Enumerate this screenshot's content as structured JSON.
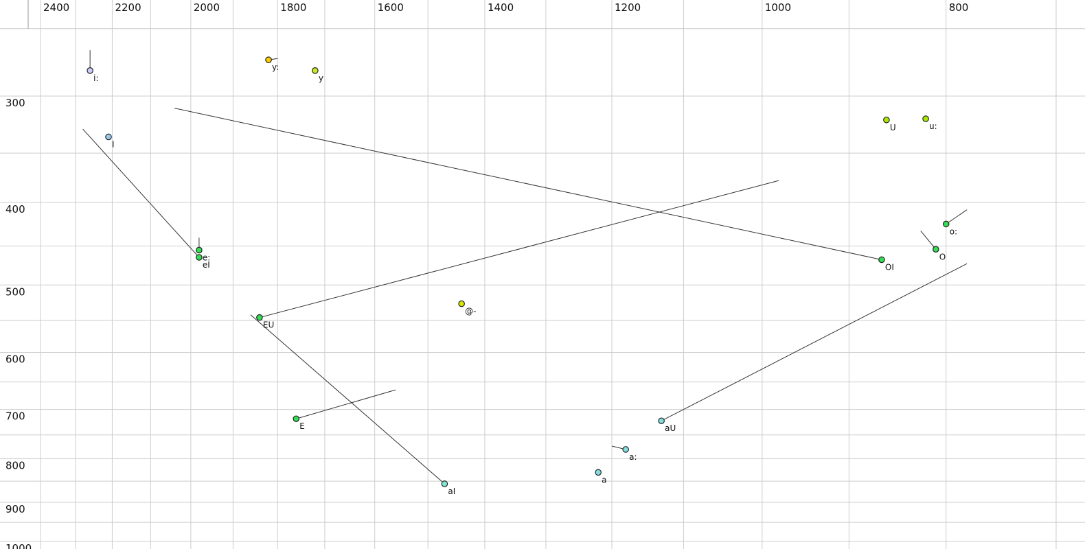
{
  "chart_data": {
    "type": "scatter",
    "title": "",
    "description": "Vowel formant chart (F2 horizontal reversed log scale, F1 vertical log scale) with X-SAMPA vowel labels and diphthong trajectory lines",
    "grid": true,
    "legend": "none",
    "x_axis": {
      "unit": "Hz",
      "ticks": [
        2400,
        2200,
        2000,
        1800,
        1600,
        1400,
        1200,
        1000,
        800
      ],
      "minor_step": 100,
      "grid_min": 700,
      "grid_max": 2400,
      "scale": "log",
      "direction": "reversed"
    },
    "y_axis": {
      "unit": "Hz",
      "ticks": [
        300,
        400,
        500,
        600,
        700,
        800,
        900,
        1000
      ],
      "minor_step": 50,
      "grid_min": 250,
      "grid_max": 1000,
      "scale": "log",
      "direction": "down"
    },
    "points": [
      {
        "label": "i:",
        "f2": 2260,
        "f1": 280,
        "f2_end": 2260,
        "f1_end": 265,
        "fill": "#ccccff"
      },
      {
        "label": "y:",
        "f2": 1820,
        "f1": 272,
        "f2_end": 1800,
        "f1_end": 271,
        "fill": "#ffcc00"
      },
      {
        "label": "y",
        "f2": 1720,
        "f1": 280,
        "fill": "#cce822"
      },
      {
        "label": "I",
        "f2": 2210,
        "f1": 335,
        "fill": "#99ccf0"
      },
      {
        "label": "U",
        "f2": 860,
        "f1": 320,
        "fill": "#aae800"
      },
      {
        "label": "u:",
        "f2": 820,
        "f1": 319,
        "fill": "#aae800"
      },
      {
        "label": "e:",
        "f2": 1980,
        "f1": 455,
        "f2_end": 1980,
        "f1_end": 440,
        "fill": "#33dd55"
      },
      {
        "label": "eI",
        "f2": 1980,
        "f1": 464,
        "f2_end": 2280,
        "f1_end": 328,
        "fill": "#33dd55"
      },
      {
        "label": "OI",
        "f2": 865,
        "f1": 467,
        "f2_end": 2040,
        "f1_end": 310,
        "fill": "#33dd55"
      },
      {
        "label": "o:",
        "f2": 800,
        "f1": 424,
        "f2_end": 780,
        "f1_end": 408,
        "fill": "#33dd55"
      },
      {
        "label": "O",
        "f2": 810,
        "f1": 454,
        "f2_end": 825,
        "f1_end": 432,
        "fill": "#33dd55"
      },
      {
        "label": "@-",
        "f2": 1440,
        "f1": 526,
        "fill": "#d8e800"
      },
      {
        "label": "EU",
        "f2": 1840,
        "f1": 546,
        "f2_end": 980,
        "f1_end": 377,
        "fill": "#33dd55"
      },
      {
        "label": "E",
        "f2": 1760,
        "f1": 718,
        "f2_end": 1560,
        "f1_end": 664,
        "fill": "#33dd55"
      },
      {
        "label": "aU",
        "f2": 1130,
        "f1": 722,
        "f2_end": 780,
        "f1_end": 472,
        "fill": "#82dce0"
      },
      {
        "label": "a:",
        "f2": 1180,
        "f1": 780,
        "f2_end": 1200,
        "f1_end": 773,
        "fill": "#82dce0"
      },
      {
        "label": "a",
        "f2": 1220,
        "f1": 830,
        "fill": "#82dce0"
      },
      {
        "label": "aI",
        "f2": 1470,
        "f1": 856,
        "f2_end": 1860,
        "f1_end": 542,
        "fill": "#7fe6d2"
      }
    ]
  },
  "colors": {
    "background": "#ffffff",
    "grid": "#cccccc",
    "trajectory": "#333333",
    "point_stroke": "#222222",
    "text": "#111111",
    "corner_tick": "#999999"
  }
}
